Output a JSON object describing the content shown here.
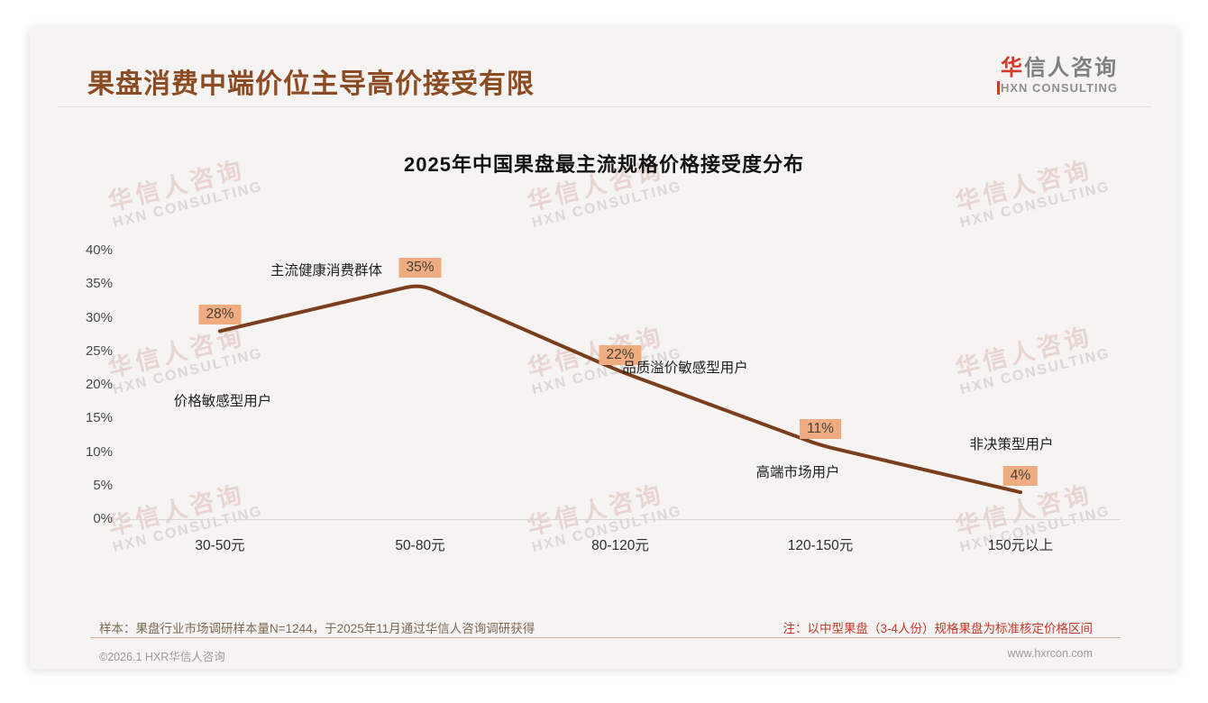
{
  "page": {
    "header": {
      "title": "果盘消费中端价位主导高价接受有限",
      "logo": {
        "cn_first": "华",
        "cn_rest": "信人咨询",
        "en_first": "H",
        "en_rest": "XN CONSULTING"
      }
    },
    "watermark": {
      "cn": "华信人咨询",
      "en": "HXN CONSULTING"
    },
    "footnotes": {
      "sample_note": "样本：果盘行业市场调研样本量N=1244，于2025年11月通过华信人咨询调研获得",
      "method_note": "注：以中型果盘（3-4人份）规格果盘为标准核定价格区间"
    },
    "footer": {
      "copyright": "©2026.1 HXR华信人咨询",
      "website": "www.hxrcon.com"
    }
  },
  "chart_data": {
    "type": "line",
    "title": "2025年中国果盘最主流规格价格接受度分布",
    "categories": [
      "30-50元",
      "50-80元",
      "80-120元",
      "120-150元",
      "150元以上"
    ],
    "values": [
      28,
      35,
      22,
      11,
      4
    ],
    "value_labels": [
      "28%",
      "35%",
      "22%",
      "11%",
      "4%"
    ],
    "point_annotations": [
      "价格敏感型用户",
      "主流健康消费群体",
      "品质溢价敏感型用户",
      "高端市场用户",
      "非决策型用户"
    ],
    "ytick_labels": [
      "40%",
      "35%",
      "30%",
      "25%",
      "20%",
      "15%",
      "10%",
      "5%",
      "0%"
    ],
    "ylim": [
      0,
      40
    ],
    "ytick_step": 5,
    "xlabel": "",
    "ylabel": "",
    "grid": false,
    "legend": false,
    "colors": {
      "line": "#7a3e1c",
      "value_label_bg": "#efac80",
      "value_label_text": "#473f38",
      "title_accent": "#8c4b22",
      "note_accent": "#c43a2a",
      "logo_red": "#d03a2b"
    }
  }
}
